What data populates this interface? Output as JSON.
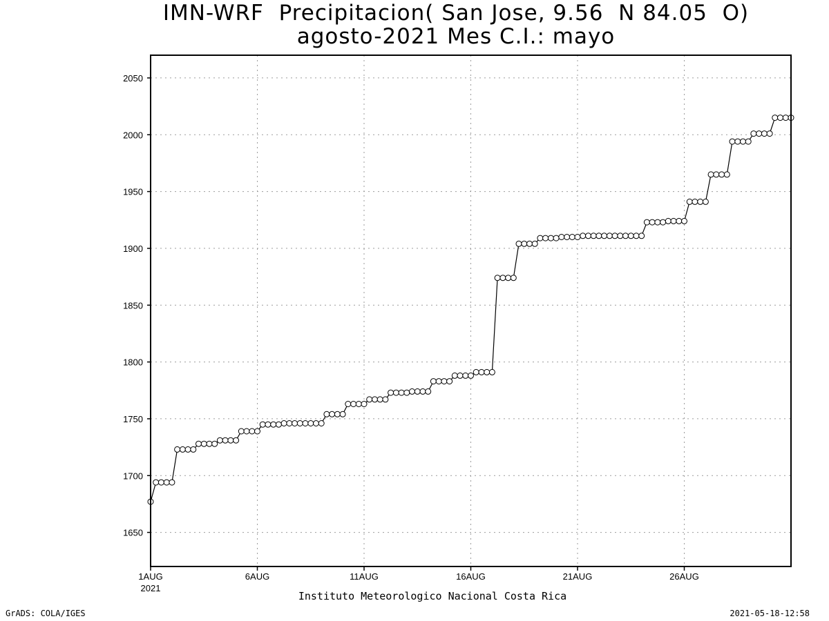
{
  "chart_data": {
    "type": "line",
    "title": "IMN-WRF  Precipitacion( San Jose, 9.56  N 84.05  O)",
    "subtitle": "agosto-2021 Mes C.I.: mayo",
    "xlabel": "Instituto Meteorologico Nacional Costa Rica",
    "ylabel": "",
    "ylim": [
      1620,
      2070
    ],
    "yticks": [
      1650,
      1700,
      1750,
      1800,
      1850,
      1900,
      1950,
      2000,
      2050
    ],
    "xlim_days": [
      1,
      31
    ],
    "xtick_labels": [
      "1AUG",
      "6AUG",
      "11AUG",
      "16AUG",
      "21AUG",
      "26AUG"
    ],
    "xtick_sublabel": "2021",
    "grid": true,
    "series": [
      {
        "x_step": "6-hourly from 2021-08-01",
        "values": [
          1677,
          1694,
          1694,
          1694,
          1694,
          1723,
          1723,
          1723,
          1723,
          1728,
          1728,
          1728,
          1728,
          1731,
          1731,
          1731,
          1731,
          1739,
          1739,
          1739,
          1739,
          1745,
          1745,
          1745,
          1745,
          1746,
          1746,
          1746,
          1746,
          1746,
          1746,
          1746,
          1746,
          1754,
          1754,
          1754,
          1754,
          1763,
          1763,
          1763,
          1763,
          1767,
          1767,
          1767,
          1767,
          1773,
          1773,
          1773,
          1773,
          1774,
          1774,
          1774,
          1774,
          1783,
          1783,
          1783,
          1783,
          1788,
          1788,
          1788,
          1788,
          1791,
          1791,
          1791,
          1791,
          1874,
          1874,
          1874,
          1874,
          1904,
          1904,
          1904,
          1904,
          1909,
          1909,
          1909,
          1909,
          1910,
          1910,
          1910,
          1910,
          1911,
          1911,
          1911,
          1911,
          1911,
          1911,
          1911,
          1911,
          1911,
          1911,
          1911,
          1911,
          1923,
          1923,
          1923,
          1923,
          1924,
          1924,
          1924,
          1924,
          1941,
          1941,
          1941,
          1941,
          1965,
          1965,
          1965,
          1965,
          1994,
          1994,
          1994,
          1994,
          2001,
          2001,
          2001,
          2001,
          2015,
          2015,
          2015,
          2015
        ]
      }
    ]
  },
  "footer": {
    "left": "GrADS: COLA/IGES",
    "right": "2021-05-18-12:58"
  }
}
